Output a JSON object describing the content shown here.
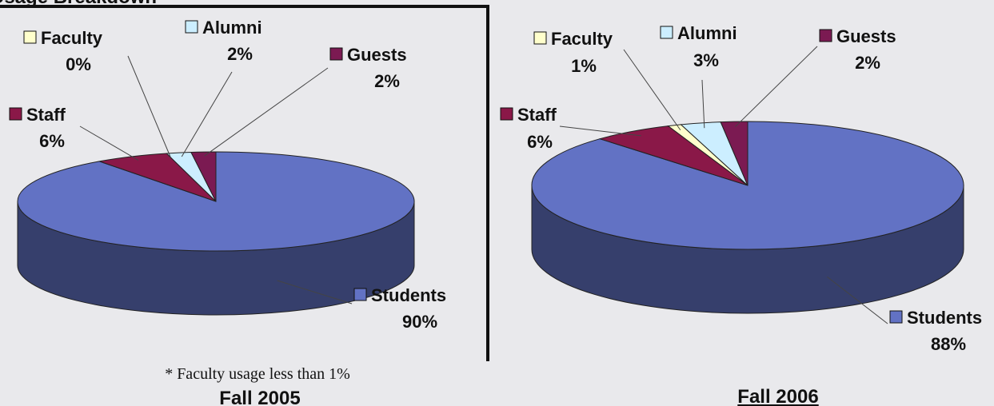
{
  "title": "Usage Breakdown",
  "chart_data": [
    {
      "type": "pie",
      "title": "Fall 2005",
      "note": "* Faculty usage less than 1%",
      "categories": [
        "Students",
        "Staff",
        "Faculty",
        "Alumni",
        "Guests"
      ],
      "values": [
        90,
        6,
        0,
        2,
        2
      ],
      "value_labels": [
        "90%",
        "6%",
        "0%",
        "2%",
        "2%"
      ],
      "colors": [
        "#6272c4",
        "#8a1848",
        "#ffffcc",
        "#cceeff",
        "#7b1a52"
      ]
    },
    {
      "type": "pie",
      "title": "Fall 2006",
      "categories": [
        "Students",
        "Staff",
        "Faculty",
        "Alumni",
        "Guests"
      ],
      "values": [
        88,
        6,
        1,
        3,
        2
      ],
      "value_labels": [
        "88%",
        "6%",
        "1%",
        "3%",
        "2%"
      ],
      "colors": [
        "#6272c4",
        "#8a1848",
        "#ffffcc",
        "#cceeff",
        "#7b1a52"
      ]
    }
  ]
}
